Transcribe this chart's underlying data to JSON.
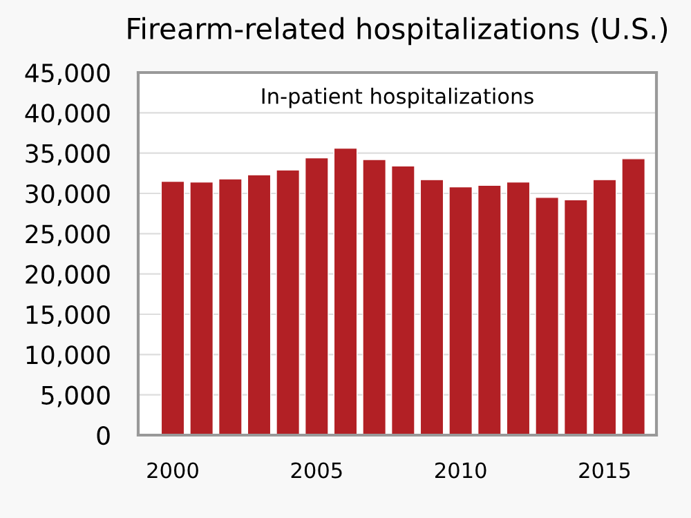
{
  "chart_data": {
    "type": "bar",
    "title": "Firearm-related hospitalizations (U.S.)",
    "annotations": [
      "In-patient hospitalizations"
    ],
    "categories": [
      "2000",
      null,
      null,
      null,
      null,
      "2005",
      null,
      null,
      null,
      null,
      "2010",
      null,
      null,
      null,
      null,
      "2015",
      null
    ],
    "values": [
      31500,
      31400,
      31800,
      32300,
      32900,
      34400,
      35600,
      34200,
      33400,
      31700,
      30800,
      31000,
      31400,
      29500,
      29200,
      31700,
      34300
    ],
    "color": "#b22025",
    "ylim": [
      0,
      45000
    ],
    "yticks": [
      {
        "value": 0,
        "label": "0"
      },
      {
        "value": 5000,
        "label": "5,000"
      },
      {
        "value": 10000,
        "label": "10,000"
      },
      {
        "value": 15000,
        "label": "15,000"
      },
      {
        "value": 20000,
        "label": "20,000"
      },
      {
        "value": 25000,
        "label": "25,000"
      },
      {
        "value": 30000,
        "label": "30,000"
      },
      {
        "value": 35000,
        "label": "35,000"
      },
      {
        "value": 40000,
        "label": "40,000"
      },
      {
        "value": 45000,
        "label": "45,000"
      }
    ],
    "grid": "y"
  }
}
